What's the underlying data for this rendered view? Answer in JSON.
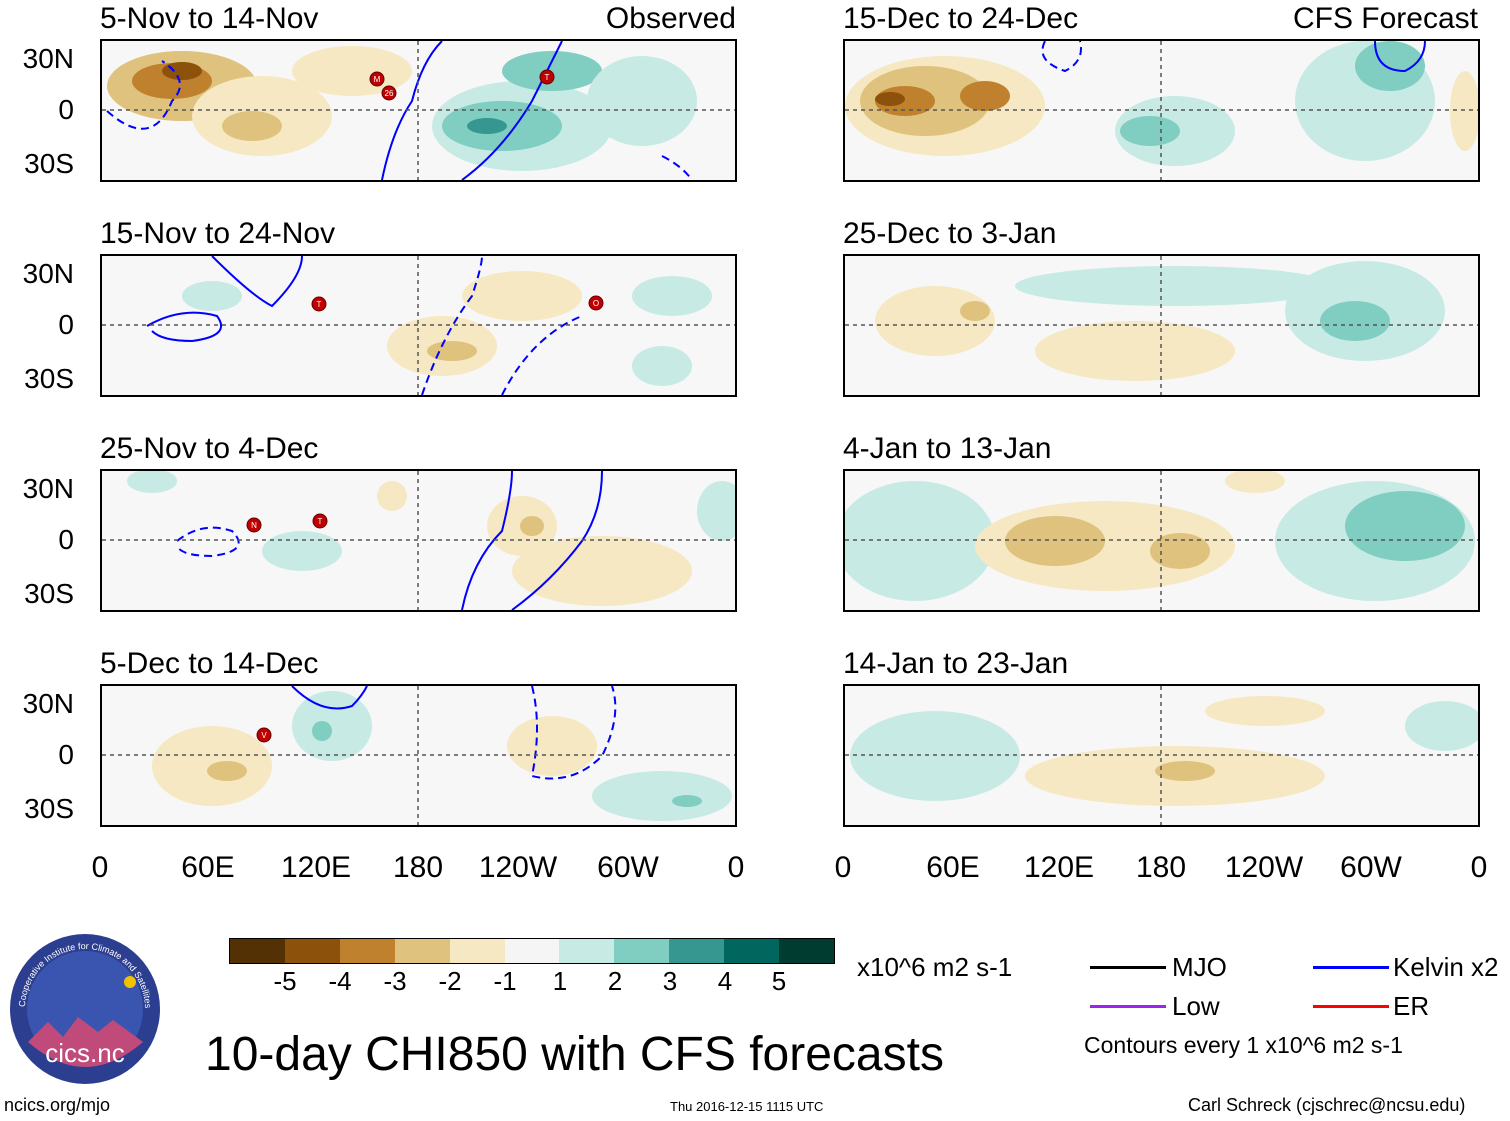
{
  "panels_left": [
    {
      "title": "5-Nov to 14-Nov",
      "label": "Observed"
    },
    {
      "title": "15-Nov to 24-Nov",
      "label": ""
    },
    {
      "title": "25-Nov to 4-Dec",
      "label": ""
    },
    {
      "title": "5-Dec to 14-Dec",
      "label": ""
    }
  ],
  "panels_right": [
    {
      "title": "15-Dec to 24-Dec",
      "label": "CFS Forecast"
    },
    {
      "title": "25-Dec to 3-Jan",
      "label": ""
    },
    {
      "title": "4-Jan to 13-Jan",
      "label": ""
    },
    {
      "title": "14-Jan to 23-Jan",
      "label": ""
    }
  ],
  "lat_labels": [
    "30N",
    "0",
    "30S"
  ],
  "lon_labels": [
    "0",
    "60E",
    "120E",
    "180",
    "120W",
    "60W",
    "0"
  ],
  "colorbar": {
    "numbers": [
      "-5",
      "-4",
      "-3",
      "-2",
      "-1",
      "1",
      "2",
      "3",
      "4",
      "5"
    ],
    "colors": [
      "#543005",
      "#8c510a",
      "#bf812d",
      "#dfc27d",
      "#f6e8c3",
      "#f5f5f5",
      "#c7eae5",
      "#80cdc1",
      "#35978f",
      "#01665e",
      "#003c30"
    ],
    "units": "x10^6 m2 s-1"
  },
  "legend": {
    "items": [
      {
        "label": "MJO",
        "color": "#000000"
      },
      {
        "label": "Kelvin x2",
        "color": "#0000ff"
      },
      {
        "label": "Low",
        "color": "#a020f0"
      },
      {
        "label": "ER",
        "color": "#ff0000"
      }
    ],
    "contour_note": "Contours every 1 x10^6 m2 s-1"
  },
  "logo": {
    "text": "cics.nc",
    "ring_text": "Cooperative Institute for Climate and Satellites"
  },
  "main_title": "10-day CHI850 with CFS forecasts",
  "footer": {
    "left": "ncics.org/mjo",
    "center": "Thu 2016-12-15 1115 UTC",
    "right": "Carl Schreck (cjschrec@ncsu.edu)"
  },
  "storm_markers": [
    "M",
    "26",
    "T",
    "T",
    "O",
    "N",
    "T",
    "V"
  ]
}
